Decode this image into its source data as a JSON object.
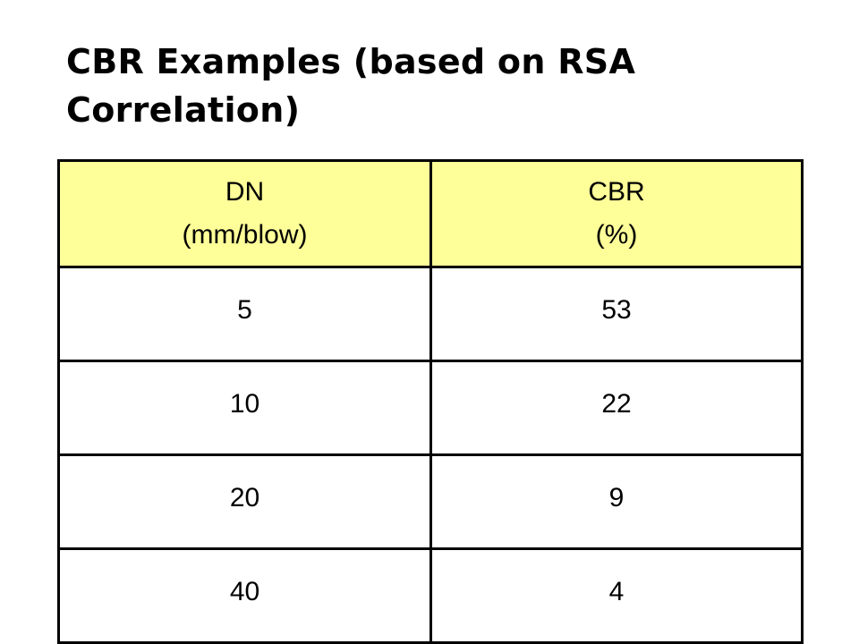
{
  "title": "CBR Examples (based on RSA Correlation)",
  "header_color": "#ffff99",
  "table": {
    "headers": [
      {
        "line1": "DN",
        "line2": "(mm/blow)"
      },
      {
        "line1": "CBR",
        "line2": "(%)"
      }
    ],
    "rows": [
      [
        "5",
        "53"
      ],
      [
        "10",
        "22"
      ],
      [
        "20",
        "9"
      ],
      [
        "40",
        "4"
      ]
    ]
  }
}
